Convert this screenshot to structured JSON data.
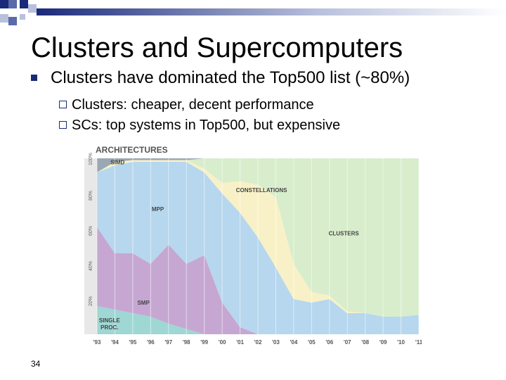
{
  "slide": {
    "title": "Clusters and Supercomputers",
    "bullet": "Clusters have dominated the Top500 list (~80%)",
    "sub_bullets": [
      "Clusters: cheaper, decent performance",
      "SCs: top systems in Top500, but expensive"
    ],
    "page_number": "34"
  },
  "chart_data": {
    "type": "area",
    "stacked": true,
    "title": "ARCHITECTURES",
    "x": [
      "'93",
      "'94",
      "'95",
      "'96",
      "'97",
      "'98",
      "'99",
      "'00",
      "'01",
      "'02",
      "'03",
      "'04",
      "'05",
      "'06",
      "'07",
      "'08",
      "'09",
      "'10",
      "'11"
    ],
    "ylim": [
      0,
      100
    ],
    "ytick_labels": [
      "20%",
      "40%",
      "60%",
      "80%",
      "100%"
    ],
    "series": [
      {
        "name": "SINGLE PROC.",
        "color": "#9fd7d4",
        "values": [
          16,
          14,
          12,
          10,
          6,
          3,
          0,
          0,
          0,
          0,
          0,
          0,
          0,
          0,
          0,
          0,
          0,
          0,
          0
        ]
      },
      {
        "name": "SMP",
        "color": "#c6a7d2",
        "values": [
          45,
          32,
          34,
          30,
          45,
          37,
          45,
          18,
          4,
          0,
          0,
          0,
          0,
          0,
          0,
          0,
          0,
          0,
          0
        ]
      },
      {
        "name": "MPP",
        "color": "#b6d7ee",
        "values": [
          31,
          50,
          52,
          58,
          47,
          58,
          47,
          62,
          65,
          55,
          38,
          20,
          18,
          20,
          12,
          12,
          10,
          10,
          11
        ]
      },
      {
        "name": "CONSTELLATIONS",
        "color": "#f8f1c7",
        "values": [
          0,
          2,
          1,
          1,
          1,
          1,
          2,
          6,
          18,
          30,
          40,
          20,
          6,
          2,
          1,
          0,
          0,
          0,
          0
        ]
      },
      {
        "name": "CLUSTERS",
        "color": "#d8edcc",
        "values": [
          0,
          0,
          0,
          0,
          0,
          0,
          6,
          14,
          13,
          15,
          22,
          60,
          76,
          78,
          87,
          88,
          90,
          90,
          89
        ]
      },
      {
        "name": "SIMD",
        "color": "#9aa8b4",
        "values": [
          8,
          2,
          1,
          1,
          1,
          1,
          0,
          0,
          0,
          0,
          0,
          0,
          0,
          0,
          0,
          0,
          0,
          0,
          0
        ]
      }
    ],
    "grid": true,
    "legend": "labels inside areas"
  }
}
